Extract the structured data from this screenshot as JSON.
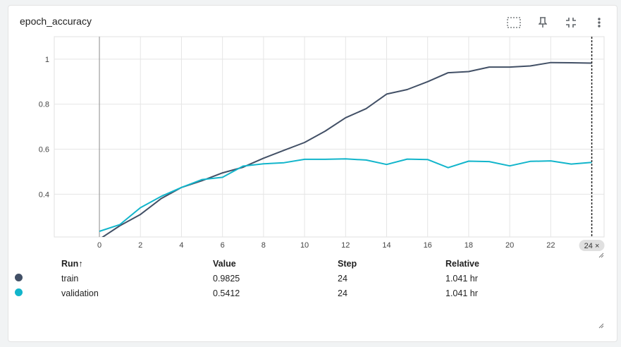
{
  "card": {
    "title": "epoch_accuracy",
    "tools": [
      {
        "name": "fit-domain-icon",
        "glyph": "⬚"
      },
      {
        "name": "pin-icon",
        "glyph": "⊤"
      },
      {
        "name": "collapse-icon",
        "glyph": "⇲"
      },
      {
        "name": "more-vert-icon",
        "glyph": "⋮"
      }
    ]
  },
  "chart_data": {
    "type": "line",
    "title": "epoch_accuracy",
    "xlabel": "",
    "ylabel": "",
    "xlim": [
      -2.2,
      24.6
    ],
    "ylim": [
      0.21,
      1.1
    ],
    "x_ticks": [
      0,
      2,
      4,
      6,
      8,
      10,
      12,
      14,
      16,
      18,
      20,
      22
    ],
    "y_ticks": [
      0.4,
      0.6,
      0.8,
      1
    ],
    "y_tick_labels": [
      "0.4",
      "0.6",
      "0.8",
      "1"
    ],
    "grid": true,
    "hover_step": 24,
    "hover_label": "24 ×",
    "series": [
      {
        "name": "train",
        "color": "#425066",
        "x": [
          0,
          1,
          2,
          3,
          4,
          5,
          6,
          7,
          8,
          9,
          10,
          11,
          12,
          13,
          14,
          15,
          16,
          17,
          18,
          19,
          20,
          21,
          22,
          23,
          24
        ],
        "values": [
          0.2,
          0.26,
          0.31,
          0.38,
          0.43,
          0.46,
          0.495,
          0.52,
          0.56,
          0.595,
          0.63,
          0.68,
          0.74,
          0.78,
          0.845,
          0.865,
          0.9,
          0.94,
          0.945,
          0.965,
          0.965,
          0.97,
          0.985,
          0.984,
          0.9825
        ]
      },
      {
        "name": "validation",
        "color": "#12b5cb",
        "x": [
          0,
          1,
          2,
          3,
          4,
          5,
          6,
          7,
          8,
          9,
          10,
          11,
          12,
          13,
          14,
          15,
          16,
          17,
          18,
          19,
          20,
          21,
          22,
          23,
          24
        ],
        "values": [
          0.235,
          0.265,
          0.34,
          0.39,
          0.43,
          0.465,
          0.475,
          0.525,
          0.535,
          0.54,
          0.555,
          0.555,
          0.557,
          0.552,
          0.532,
          0.556,
          0.554,
          0.518,
          0.547,
          0.545,
          0.526,
          0.546,
          0.548,
          0.534,
          0.5412
        ]
      }
    ]
  },
  "legend": {
    "headers": {
      "run": "Run",
      "sort_arrow": "↑",
      "value": "Value",
      "step": "Step",
      "relative": "Relative"
    },
    "rows": [
      {
        "run": "train",
        "value": "0.9825",
        "step": "24",
        "relative": "1.041 hr",
        "color": "#425066"
      },
      {
        "run": "validation",
        "value": "0.5412",
        "step": "24",
        "relative": "1.041 hr",
        "color": "#12b5cb"
      }
    ]
  }
}
